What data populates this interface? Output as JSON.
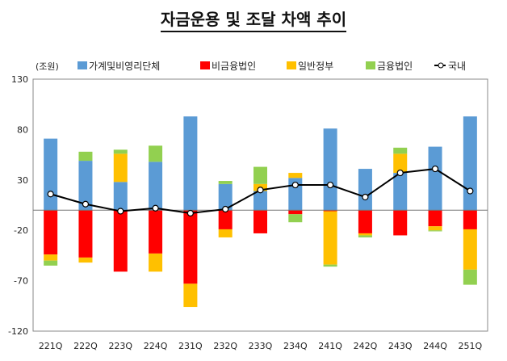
{
  "chart_data": {
    "type": "bar",
    "stacked": true,
    "title": "자금운용 및 조달 차액 추이",
    "ylabel": "(조원)",
    "ylim": [
      -120,
      130
    ],
    "yticks": [
      130,
      80,
      30,
      -20,
      -70,
      -120
    ],
    "grid": false,
    "legend_position": "top",
    "categories": [
      "221Q",
      "222Q",
      "223Q",
      "224Q",
      "231Q",
      "232Q",
      "233Q",
      "234Q",
      "241Q",
      "242Q",
      "243Q",
      "244Q",
      "251Q"
    ],
    "series": [
      {
        "name": "가계및비영리단체",
        "type": "bar",
        "color": "#5b9bd5",
        "values": [
          71,
          49,
          28,
          48,
          93,
          26,
          19,
          32,
          81,
          41,
          37,
          63,
          93
        ]
      },
      {
        "name": "비금융법인",
        "type": "bar",
        "color": "#ff0000",
        "values": [
          -44,
          -47,
          -61,
          -43,
          -73,
          -19,
          -23,
          -4,
          -1,
          -23,
          -25,
          -16,
          -19
        ]
      },
      {
        "name": "일반정부",
        "type": "bar",
        "color": "#ffc000",
        "values": [
          -6,
          -5,
          28,
          -18,
          -23,
          -8,
          7,
          5,
          -53,
          -2,
          19,
          -4,
          -40
        ]
      },
      {
        "name": "금융법인",
        "type": "bar",
        "color": "#92d050",
        "values": [
          -5,
          9,
          4,
          16,
          0,
          3,
          17,
          -8,
          -2,
          -2,
          6,
          -1,
          -15
        ]
      },
      {
        "name": "국내",
        "type": "line",
        "color": "#000000",
        "values": [
          16,
          6,
          -1,
          2,
          -3,
          1,
          20,
          25,
          25,
          13,
          37,
          41,
          19
        ]
      }
    ]
  }
}
